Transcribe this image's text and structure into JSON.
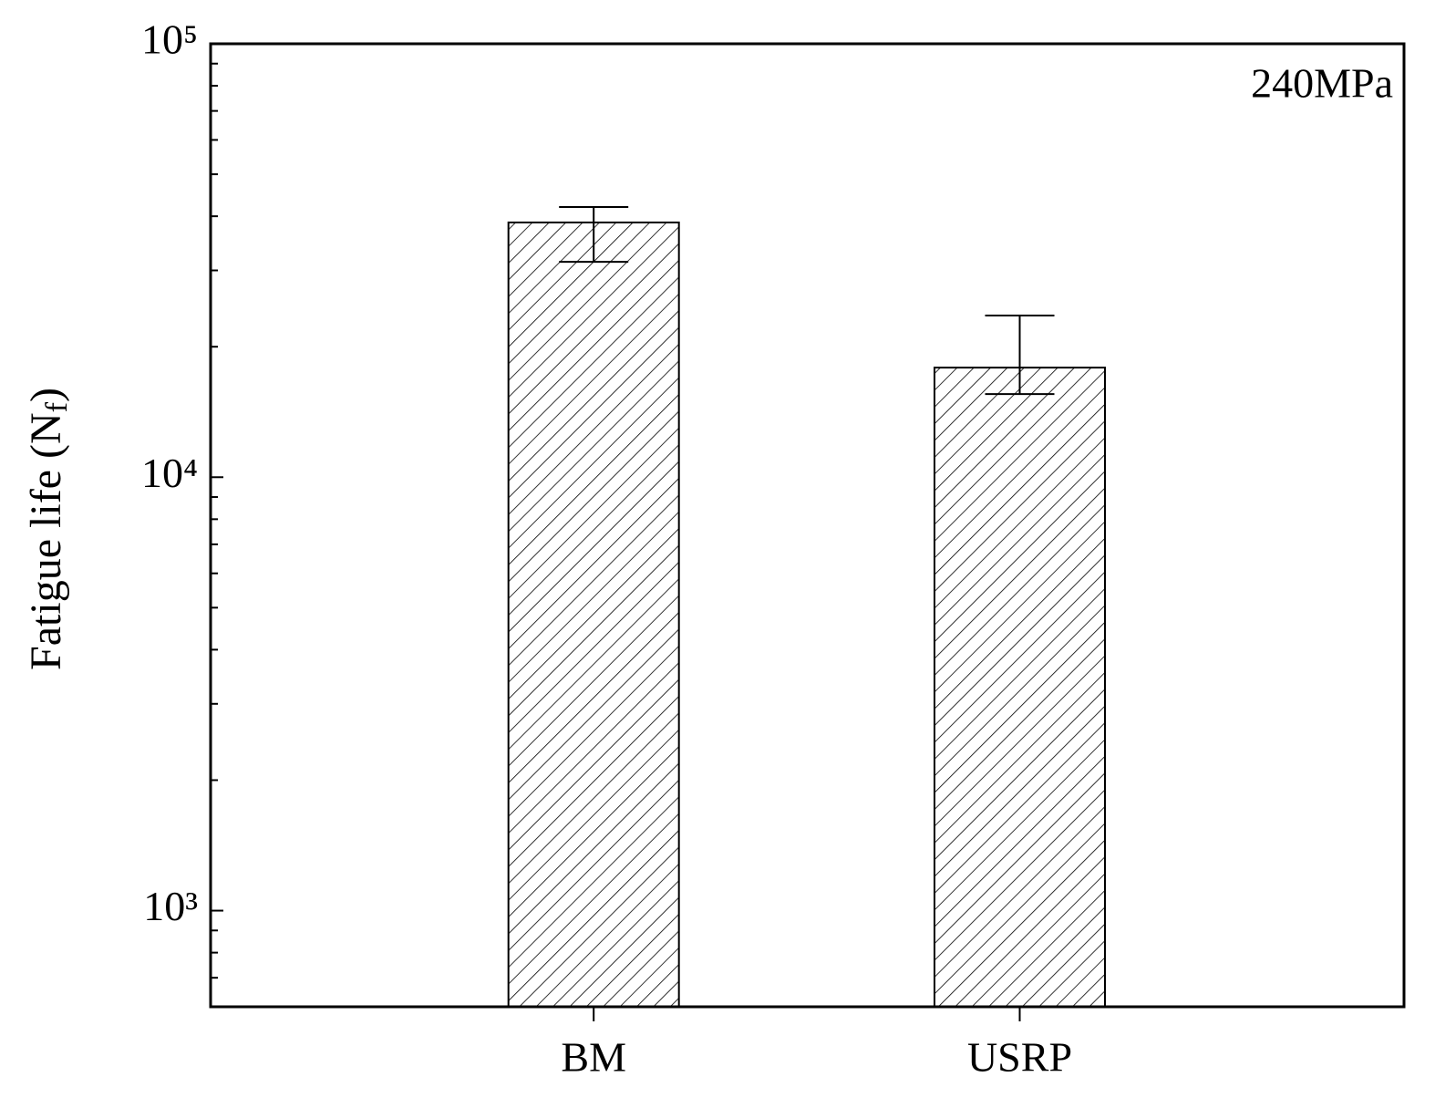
{
  "chart_data": {
    "type": "bar",
    "ylabel": [
      "Fatigue life (N",
      "f",
      ")"
    ],
    "annotation": "240MPa",
    "categories": [
      "BM",
      "USRP"
    ],
    "values": [
      38700,
      17900
    ],
    "error_plus": [
      3300,
      5700
    ],
    "error_minus": [
      7300,
      2350
    ],
    "color": "#000000",
    "hatch": true,
    "ylog": true,
    "ylim": [
      600,
      100000
    ],
    "yticks": [
      {
        "value": 1000,
        "label": "10³"
      },
      {
        "value": 10000,
        "label": "10⁴"
      },
      {
        "value": 100000,
        "label": "10⁵"
      }
    ],
    "yminorticks": [
      700,
      800,
      900,
      2000,
      3000,
      4000,
      5000,
      6000,
      7000,
      8000,
      9000,
      20000,
      30000,
      40000,
      50000,
      60000,
      70000,
      80000,
      90000
    ]
  }
}
